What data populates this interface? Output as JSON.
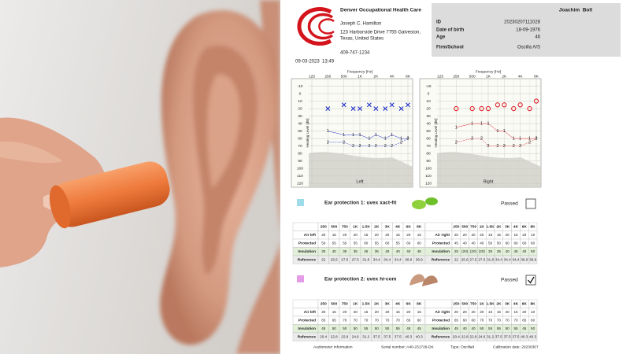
{
  "clinic": {
    "name": "Denver Occupational Health Care",
    "contact": "Joseph C. Hamilton",
    "address_lines": [
      "123 Harborside Drive 7755 Galveston,",
      "Texas, United States"
    ],
    "phone": "409-747-1234"
  },
  "patient": {
    "name": "Joachim  Boll",
    "fields": [
      {
        "label": "ID",
        "value": "20230207111028"
      },
      {
        "label": "Date of birth",
        "value": "18-09-1976"
      },
      {
        "label": "Age",
        "value": 46
      },
      {
        "label": "Firm/School",
        "value": "Oscilla A/S"
      }
    ]
  },
  "datetime": "09-03-2023  13:49",
  "audiogram": {
    "x_label": "Frequency [Hz]",
    "y_label": "Hearing Level [dB]",
    "x": [
      250,
      500,
      750,
      1000,
      1500,
      2000,
      3000,
      4000,
      6000,
      8000
    ],
    "xlim": [
      125,
      8000
    ],
    "log_x": true,
    "xticks": [
      125,
      250,
      500,
      {
        "value": 1000,
        "label": "1K"
      },
      {
        "value": 2000,
        "label": "2K"
      },
      {
        "value": 4000,
        "label": "4K"
      },
      {
        "value": 8000,
        "label": "8K"
      }
    ],
    "ylim": [
      -20,
      125
    ],
    "yticks": [
      -10,
      0,
      10,
      20,
      30,
      40,
      50,
      60,
      70,
      80,
      90,
      100,
      110,
      120
    ],
    "grid": true,
    "charts": [
      {
        "label": "Left",
        "color": "#1f2fc8",
        "marker": "x"
      },
      {
        "label": "Right",
        "color": "#e0202a",
        "marker": "o"
      }
    ]
  },
  "protections": [
    {
      "title": "Ear protection 1: uvex xact-fit",
      "symbol": "1",
      "color": "#9fdcea",
      "status": "Passed",
      "checked": false,
      "tables": [
        {
          "headers": [
            "250",
            "500",
            "750",
            "1K",
            "1.5K",
            "2K",
            "3K",
            "4K",
            "6K",
            "8K"
          ],
          "rows": [
            {
              "label": "Air left",
              "values": [
                20,
                15,
                20,
                20,
                15,
                20,
                20,
                15,
                20,
                15
              ]
            },
            {
              "label": "Protected",
              "values": [
                50,
                55,
                55,
                55,
                60,
                55,
                60,
                55,
                60,
                60
              ]
            },
            {
              "label": "Insulation",
              "values": [
                30,
                40,
                35,
                35,
                45,
                35,
                40,
                40,
                40,
                45
              ]
            },
            {
              "label": "Reference",
              "values": [
                22,
                25.6,
                27.5,
                27.5,
                31.8,
                34.4,
                34.4,
                34.4,
                36.9,
                36.9
              ]
            }
          ]
        },
        {
          "headers": [
            "250",
            "500",
            "750",
            "1K",
            "1.5K",
            "2K",
            "3K",
            "4K",
            "6K",
            "8K"
          ],
          "rows": [
            {
              "label": "Air right",
              "values": [
                20,
                20,
                20,
                20,
                15,
                15,
                20,
                15,
                20,
                10
              ]
            },
            {
              "label": "Protected",
              "values": [
                45,
                40,
                40,
                40,
                50,
                50,
                60,
                60,
                60,
                60
              ]
            },
            {
              "label": "Insulation",
              "values": [
                25,
                "(20)",
                "(20)",
                "(20)",
                35,
                35,
                40,
                45,
                40,
                50
              ]
            },
            {
              "label": "Reference",
              "values": [
                22,
                25.6,
                27.5,
                27.5,
                31.8,
                34.4,
                34.4,
                34.4,
                36.9,
                36.9
              ]
            }
          ]
        }
      ]
    },
    {
      "title": "Ear protection 2: uvex hi-com",
      "symbol": "2",
      "color": "#e59be6",
      "status": "Passed",
      "checked": true,
      "tables": [
        {
          "headers": [
            "250",
            "500",
            "750",
            "1K",
            "1.5K",
            "2K",
            "3K",
            "4K",
            "6K",
            "8K"
          ],
          "rows": [
            {
              "label": "Air left",
              "values": [
                20,
                15,
                20,
                20,
                15,
                20,
                20,
                15,
                20,
                15
              ]
            },
            {
              "label": "Protected",
              "values": [
                65,
                65,
                70,
                70,
                70,
                70,
                70,
                70,
                65,
                60
              ]
            },
            {
              "label": "Insulation",
              "values": [
                45,
                50,
                50,
                50,
                55,
                50,
                50,
                55,
                45,
                45
              ]
            },
            {
              "label": "Reference",
              "values": [
                20.4,
                22.8,
                22.8,
                24.6,
                31.2,
                37.5,
                37.5,
                37.5,
                40.3,
                40.3
              ]
            }
          ]
        },
        {
          "headers": [
            "250",
            "500",
            "750",
            "1K",
            "1.5K",
            "2K",
            "3K",
            "4K",
            "6K",
            "8K"
          ],
          "rows": [
            {
              "label": "Air right",
              "values": [
                20,
                20,
                20,
                20,
                15,
                15,
                20,
                15,
                20,
                10
              ]
            },
            {
              "label": "Protected",
              "values": [
                65,
                60,
                60,
                70,
                70,
                70,
                70,
                70,
                65,
                60
              ]
            },
            {
              "label": "Insulation",
              "values": [
                45,
                40,
                40,
                50,
                55,
                55,
                50,
                55,
                45,
                50
              ]
            },
            {
              "label": "Reference",
              "values": [
                20.4,
                22.8,
                22.8,
                24.6,
                31.2,
                37.5,
                37.5,
                37.5,
                40.3,
                40.3
              ]
            }
          ]
        }
      ]
    }
  ],
  "footer": [
    "Audiometer information",
    "Serial number: A40-231729-DK",
    "Type: Oscilla8",
    "Calibration date: 20230307"
  ]
}
